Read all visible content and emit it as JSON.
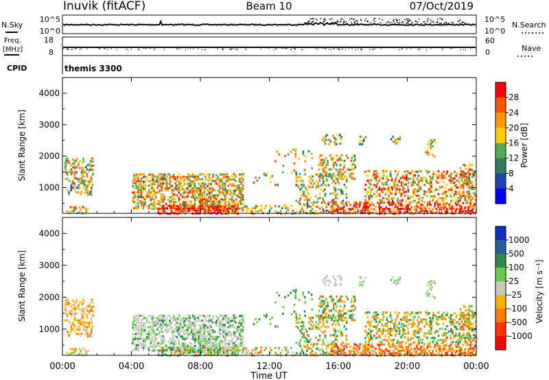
{
  "header": {
    "station": "Inuvik (fitACF)",
    "beam": "Beam 10",
    "date": "07/Oct/2019"
  },
  "top_panels": {
    "nsky_label": "N.Sky",
    "nsky_ticks": [
      "10^5",
      "10^0"
    ],
    "nsearch_label": "N.Search",
    "nsearch_ticks": [
      "10^5",
      "10^0"
    ],
    "freq_label_1": "Freq.",
    "freq_label_2": "[MHz]",
    "freq_ticks": [
      "18",
      "8"
    ],
    "nave_label": "Nave",
    "nave_ticks": [
      "60",
      "0"
    ],
    "cpid_label": "CPID",
    "cpid_value": "themis 3300"
  },
  "chart_data": [
    {
      "type": "heatmap",
      "name": "power",
      "ylabel": "Slant Range [km]",
      "xlabel": "Time UT",
      "x_ticks": [
        "00:00",
        "04:00",
        "08:00",
        "12:00",
        "16:00",
        "20:00",
        "00:00"
      ],
      "xlim_hours": [
        0,
        24
      ],
      "y_ticks": [
        1000,
        2000,
        3000,
        4000
      ],
      "ylim_km": [
        180,
        4500
      ],
      "colorbar_label": "Power [dB]",
      "colorbar_ticks": [
        "28",
        "24",
        "20",
        "16",
        "12",
        "8",
        "4"
      ],
      "colorbar_colors": [
        "#ff0000",
        "#ff5500",
        "#ff9900",
        "#ffcc00",
        "#55aa55",
        "#2f7f5f",
        "#1a48b0",
        "#0000ff"
      ]
    },
    {
      "type": "heatmap",
      "name": "velocity",
      "ylabel": "Slant Range [km]",
      "xlabel": "Time UT",
      "x_ticks": [
        "00:00",
        "04:00",
        "08:00",
        "12:00",
        "16:00",
        "20:00",
        "00:00"
      ],
      "xlim_hours": [
        0,
        24
      ],
      "y_ticks": [
        1000,
        2000,
        3000,
        4000
      ],
      "ylim_km": [
        180,
        4500
      ],
      "colorbar_label": "Velocity [m s⁻¹]",
      "colorbar_ticks": [
        "1000",
        "500",
        "100",
        "25",
        "-25",
        "-100",
        "-500",
        "-1000"
      ],
      "colorbar_colors": [
        "#1030c0",
        "#2060a0",
        "#2d8a4a",
        "#66cc44",
        "#c8c8c0",
        "#ffb000",
        "#ff7a00",
        "#ff3300",
        "#ff0000"
      ]
    }
  ],
  "time_axis_label": "Time UT"
}
